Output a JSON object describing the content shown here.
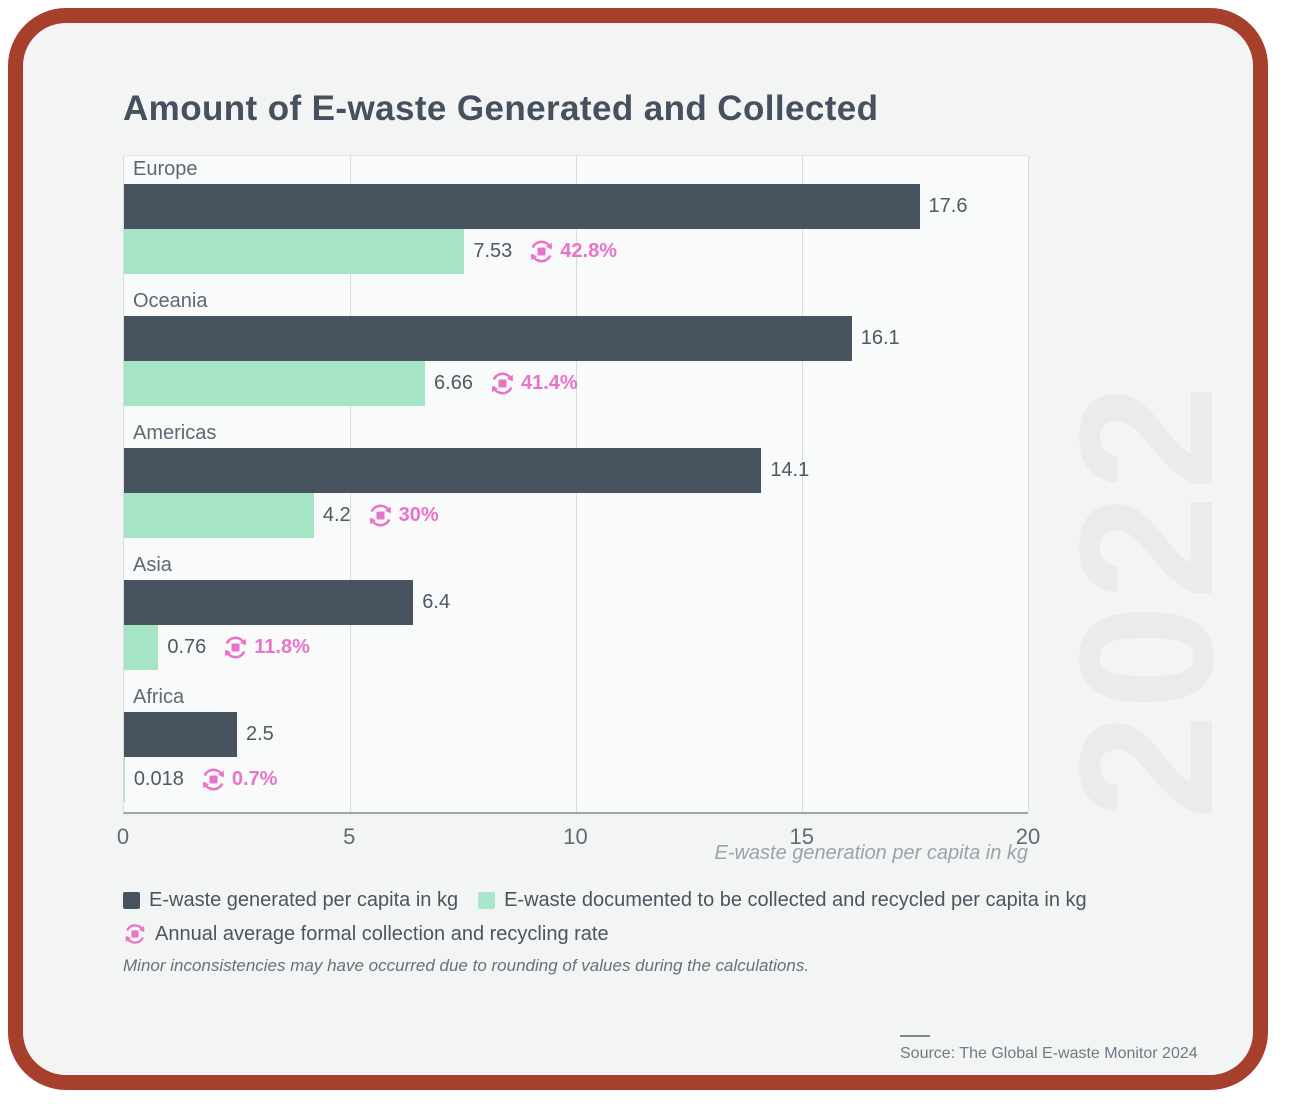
{
  "title": "Amount of E-waste Generated and Collected",
  "watermark": "2022",
  "note": "Minor inconsistencies may have occurred due to rounding of values during the calculations.",
  "source": "Source: The Global E-waste Monitor 2024",
  "colors": {
    "frame": "#a6402c",
    "panel_bg": "#f3f4f4",
    "plot_bg": "#f9fafa",
    "generated_bar": "#475460",
    "collected_bar": "#a5e5c6",
    "rate_pink": "#e874ca",
    "watermark": "#e9ebec"
  },
  "legend": {
    "generated": "E-waste generated per capita in kg",
    "collected": "E-waste documented to be collected and recycled per capita in kg",
    "rate": "Annual average formal collection and recycling rate"
  },
  "chart_data": {
    "type": "bar",
    "orientation": "horizontal",
    "title": "Amount of E-waste Generated and Collected",
    "xlabel": "E-waste generation per capita in kg",
    "xlim": [
      0,
      20
    ],
    "xticks": [
      0,
      5,
      10,
      15,
      20
    ],
    "grid": true,
    "legend_position": "bottom",
    "categories": [
      "Europe",
      "Oceania",
      "Americas",
      "Asia",
      "Africa"
    ],
    "series": [
      {
        "name": "E-waste generated per capita in kg",
        "values": [
          17.6,
          16.1,
          14.1,
          6.4,
          2.5
        ],
        "labels": [
          "17.6",
          "16.1",
          "14.1",
          "6.4",
          "2.5"
        ]
      },
      {
        "name": "E-waste documented to be collected and recycled per capita in kg",
        "values": [
          7.53,
          6.66,
          4.2,
          0.76,
          0.018
        ],
        "labels": [
          "7.53",
          "6.66",
          "4.2",
          "0.76",
          "0.018"
        ]
      },
      {
        "name": "Annual average formal collection and recycling rate",
        "rates": [
          "42.8%",
          "41.4%",
          "30%",
          "11.8%",
          "0.7%"
        ]
      }
    ]
  }
}
